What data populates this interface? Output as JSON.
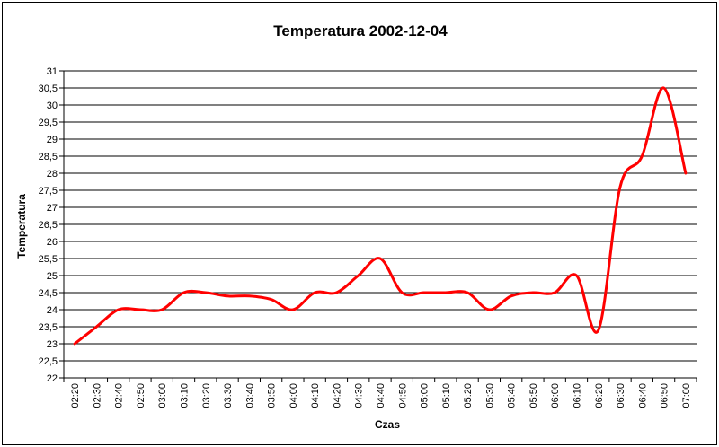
{
  "chart_data": {
    "type": "line",
    "title": "Temperatura 2002-12-04",
    "xlabel": "Czas",
    "ylabel": "Temperatura",
    "ylim": [
      22,
      31
    ],
    "ytick_step": 0.5,
    "ytick_labels": [
      "22",
      "22,5",
      "23",
      "23,5",
      "24",
      "24,5",
      "25",
      "25,5",
      "26",
      "26,5",
      "27",
      "27,5",
      "28",
      "28,5",
      "29",
      "29,5",
      "30",
      "30,5",
      "31"
    ],
    "categories": [
      "02:20",
      "02:30",
      "02:40",
      "02:50",
      "03:00",
      "03:10",
      "03:20",
      "03:30",
      "03:40",
      "03:50",
      "04:00",
      "04:10",
      "04:20",
      "04:30",
      "04:40",
      "04:50",
      "05:00",
      "05:10",
      "05:20",
      "05:30",
      "05:40",
      "05:50",
      "06:00",
      "06:10",
      "06:20",
      "06:30",
      "06:40",
      "06:50",
      "07:00"
    ],
    "series": [
      {
        "values": [
          23.0,
          23.5,
          24.0,
          24.0,
          24.0,
          24.5,
          24.5,
          24.4,
          24.4,
          24.3,
          24.0,
          24.5,
          24.5,
          25.0,
          25.5,
          24.5,
          24.5,
          24.5,
          24.5,
          24.0,
          24.4,
          24.5,
          24.5,
          25.0,
          23.4,
          27.6,
          28.5,
          30.5,
          28.0
        ],
        "color": "#ff0000"
      }
    ],
    "grid": true,
    "legend": "none"
  }
}
